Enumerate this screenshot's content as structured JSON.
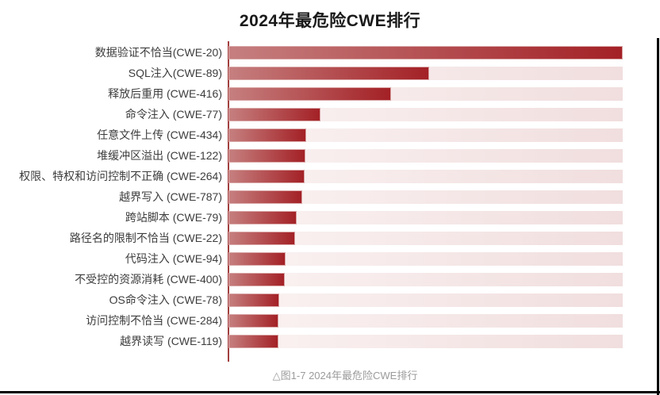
{
  "title": "2024年最危险CWE排行",
  "caption": "△图1-7 2024年最危险CWE排行",
  "colors": {
    "bar_gradient_start": "#c67f7f",
    "bar_gradient_end": "#a32126",
    "track_gradient_start": "#fbf3f3",
    "track_gradient_end": "#f1dede",
    "axis_line": "#a24040",
    "bar_border": "#d9a6a6",
    "title_text": "#1a1a1a",
    "label_text": "#3d3d3d",
    "caption_text": "#9b9b9b",
    "frame_border": "#000000"
  },
  "chart_data": {
    "type": "bar",
    "orientation": "horizontal",
    "title": "2024年最危险CWE排行",
    "xlabel": "",
    "ylabel": "",
    "categories": [
      "数据验证不恰当(CWE-20)",
      "SQL注入(CWE-89)",
      "释放后重用 (CWE-416)",
      "命令注入 (CWE-77)",
      "任意文件上传 (CWE-434)",
      "堆缓冲区溢出 (CWE-122)",
      "权限、特权和访问控制不正确 (CWE-264)",
      "越界写入 (CWE-787)",
      "跨站脚本 (CWE-79)",
      "路径名的限制不恰当 (CWE-22)",
      "代码注入 (CWE-94)",
      "不受控的资源消耗 (CWE-400)",
      "OS命令注入 (CWE-78)",
      "访问控制不恰当 (CWE-284)",
      "越界读写 (CWE-119)"
    ],
    "values_pct_of_max": [
      100,
      50.9,
      41.2,
      23.3,
      19.7,
      19.5,
      19.3,
      18.7,
      17.3,
      16.9,
      14.5,
      14.3,
      12.9,
      12.7,
      12.7
    ],
    "value_axis_tick_labels_visible": false,
    "data_labels_visible": false,
    "legend": "none",
    "grid": false,
    "bar_style": "gradient light-red to dark-red over pale-pink full-length track"
  }
}
